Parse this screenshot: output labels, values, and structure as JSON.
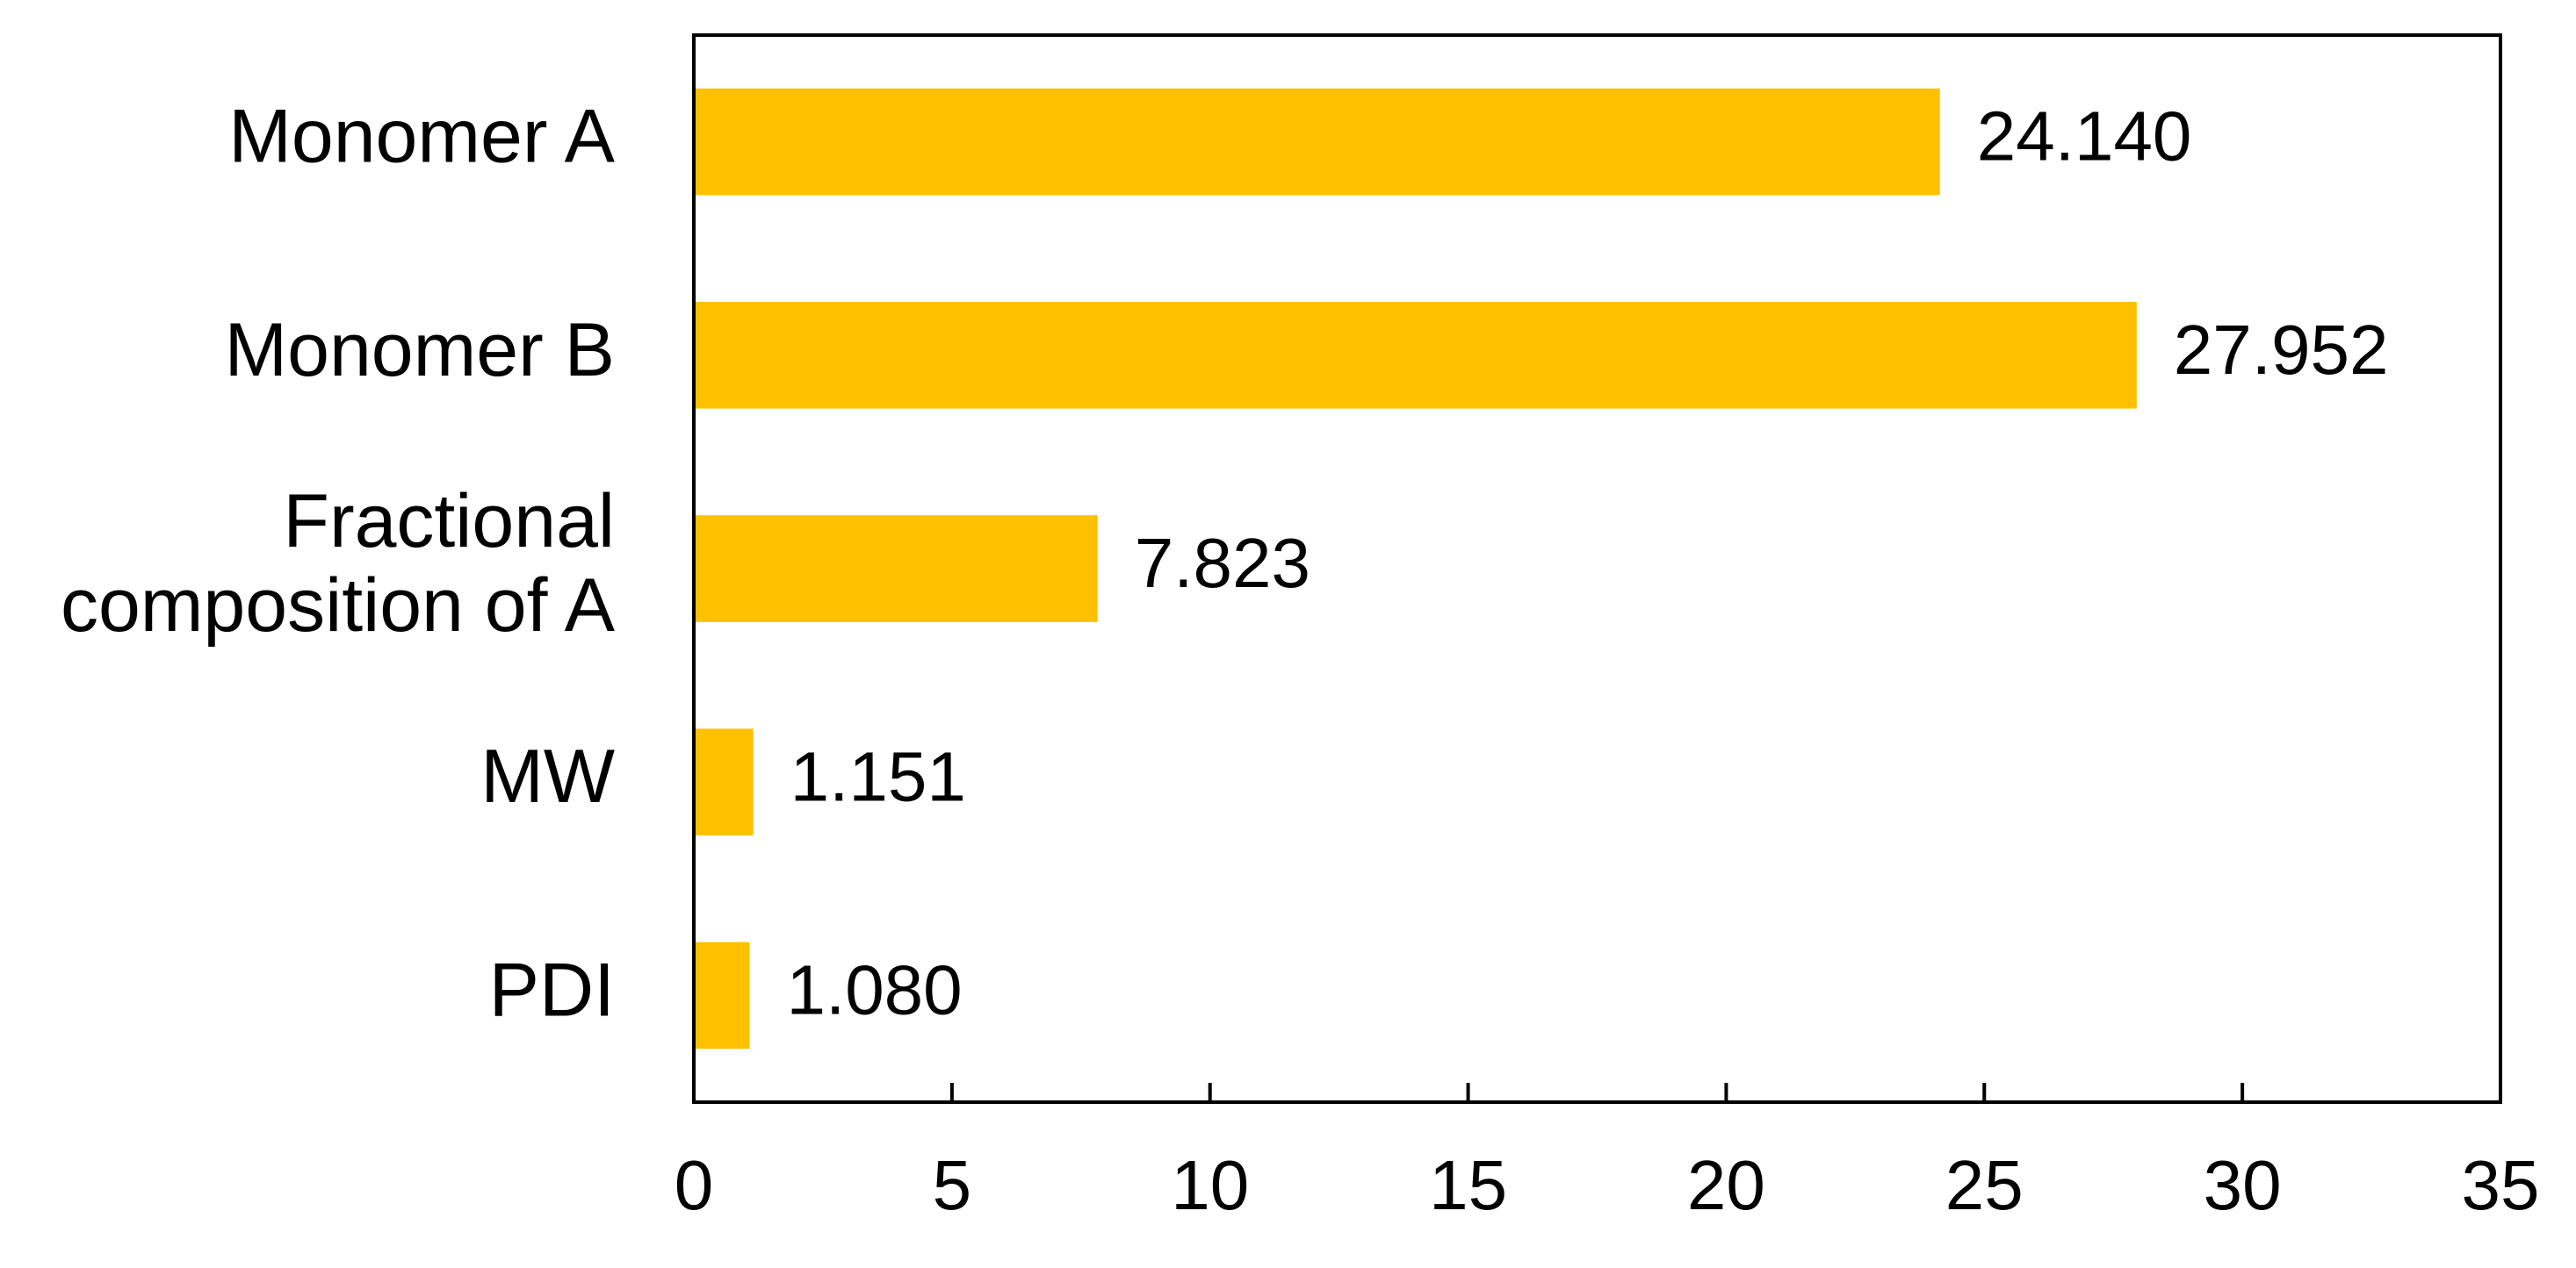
{
  "chart_data": {
    "type": "bar",
    "orientation": "horizontal",
    "title": "",
    "xlabel": "",
    "ylabel": "",
    "categories": [
      [
        "Monomer A"
      ],
      [
        "Monomer B"
      ],
      [
        "Fractional",
        "composition of A"
      ],
      [
        "MW"
      ],
      [
        "PDI"
      ]
    ],
    "values": [
      24.14,
      27.952,
      7.823,
      1.151,
      1.08
    ],
    "value_labels": [
      "24.140",
      "27.952",
      "7.823",
      "1.151",
      "1.080"
    ],
    "xlim": [
      0,
      35
    ],
    "x_ticks": [
      0,
      5,
      10,
      15,
      20,
      25,
      30,
      35
    ],
    "x_tick_labels": [
      "0",
      "5",
      "10",
      "15",
      "20",
      "25",
      "30",
      "35"
    ],
    "grid": false,
    "legend": "none",
    "bar_color": "#FFC000",
    "axis_color": "#000000"
  }
}
